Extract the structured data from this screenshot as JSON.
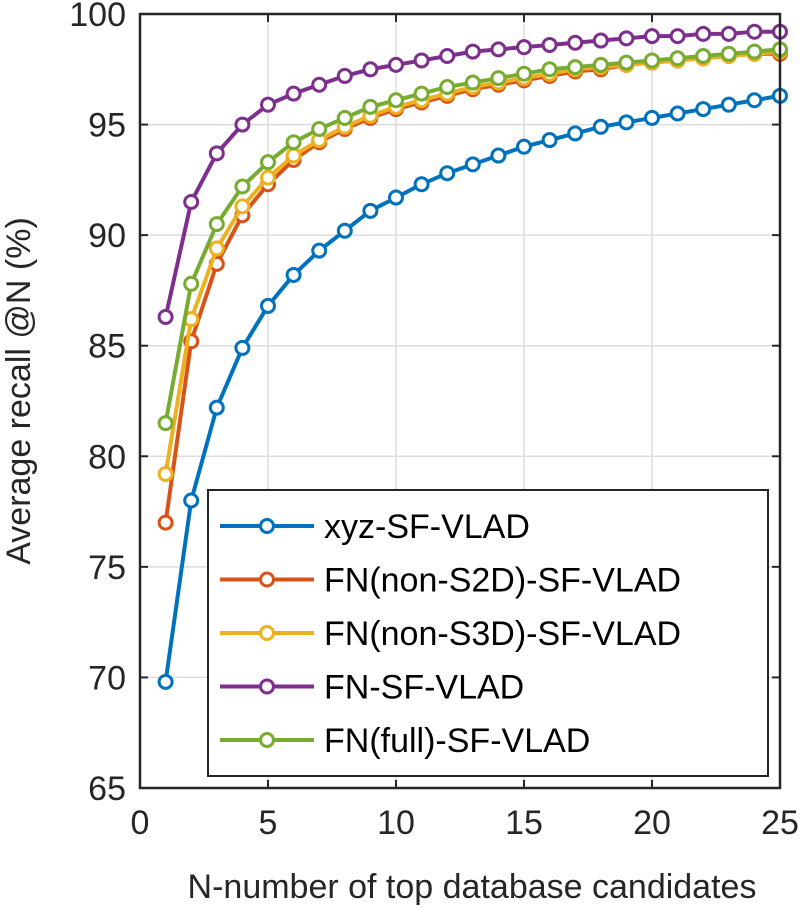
{
  "chart_data": {
    "type": "line",
    "title": "",
    "xlabel": "N-number of top database candidates",
    "ylabel": "Average recall @N (%)",
    "xlim": [
      0,
      25
    ],
    "ylim": [
      65,
      100
    ],
    "xticks": [
      0,
      5,
      10,
      15,
      20,
      25
    ],
    "yticks": [
      65,
      70,
      75,
      80,
      85,
      90,
      95,
      100
    ],
    "grid": true,
    "legend_position": "lower-right",
    "x": [
      1,
      2,
      3,
      4,
      5,
      6,
      7,
      8,
      9,
      10,
      11,
      12,
      13,
      14,
      15,
      16,
      17,
      18,
      19,
      20,
      21,
      22,
      23,
      24,
      25
    ],
    "series": [
      {
        "name": "xyz-SF-VLAD",
        "color": "#0072BD",
        "values": [
          69.8,
          78.0,
          82.2,
          84.9,
          86.8,
          88.2,
          89.3,
          90.2,
          91.1,
          91.7,
          92.3,
          92.8,
          93.2,
          93.6,
          94.0,
          94.3,
          94.6,
          94.9,
          95.1,
          95.3,
          95.5,
          95.7,
          95.9,
          96.1,
          96.3
        ]
      },
      {
        "name": "FN(non-S2D)-SF-VLAD",
        "color": "#D95319",
        "values": [
          77.0,
          85.2,
          88.7,
          90.9,
          92.3,
          93.4,
          94.2,
          94.8,
          95.3,
          95.7,
          96.0,
          96.3,
          96.6,
          96.8,
          97.0,
          97.2,
          97.4,
          97.5,
          97.7,
          97.8,
          97.9,
          98.0,
          98.1,
          98.2,
          98.2
        ]
      },
      {
        "name": "FN(non-S3D)-SF-VLAD",
        "color": "#EDB120",
        "values": [
          79.2,
          86.2,
          89.4,
          91.3,
          92.6,
          93.6,
          94.3,
          94.9,
          95.4,
          95.8,
          96.1,
          96.4,
          96.7,
          96.9,
          97.1,
          97.3,
          97.5,
          97.6,
          97.7,
          97.8,
          97.9,
          98.0,
          98.1,
          98.2,
          98.3
        ]
      },
      {
        "name": "FN-SF-VLAD",
        "color": "#7E2F8E",
        "values": [
          86.3,
          91.5,
          93.7,
          95.0,
          95.9,
          96.4,
          96.8,
          97.2,
          97.5,
          97.7,
          97.9,
          98.1,
          98.3,
          98.4,
          98.5,
          98.6,
          98.7,
          98.8,
          98.9,
          99.0,
          99.0,
          99.1,
          99.1,
          99.2,
          99.2
        ]
      },
      {
        "name": "FN(full)-SF-VLAD",
        "color": "#77AC30",
        "values": [
          81.5,
          87.8,
          90.5,
          92.2,
          93.3,
          94.2,
          94.8,
          95.3,
          95.8,
          96.1,
          96.4,
          96.7,
          96.9,
          97.1,
          97.3,
          97.5,
          97.6,
          97.7,
          97.8,
          97.9,
          98.0,
          98.1,
          98.2,
          98.3,
          98.4
        ]
      }
    ]
  }
}
